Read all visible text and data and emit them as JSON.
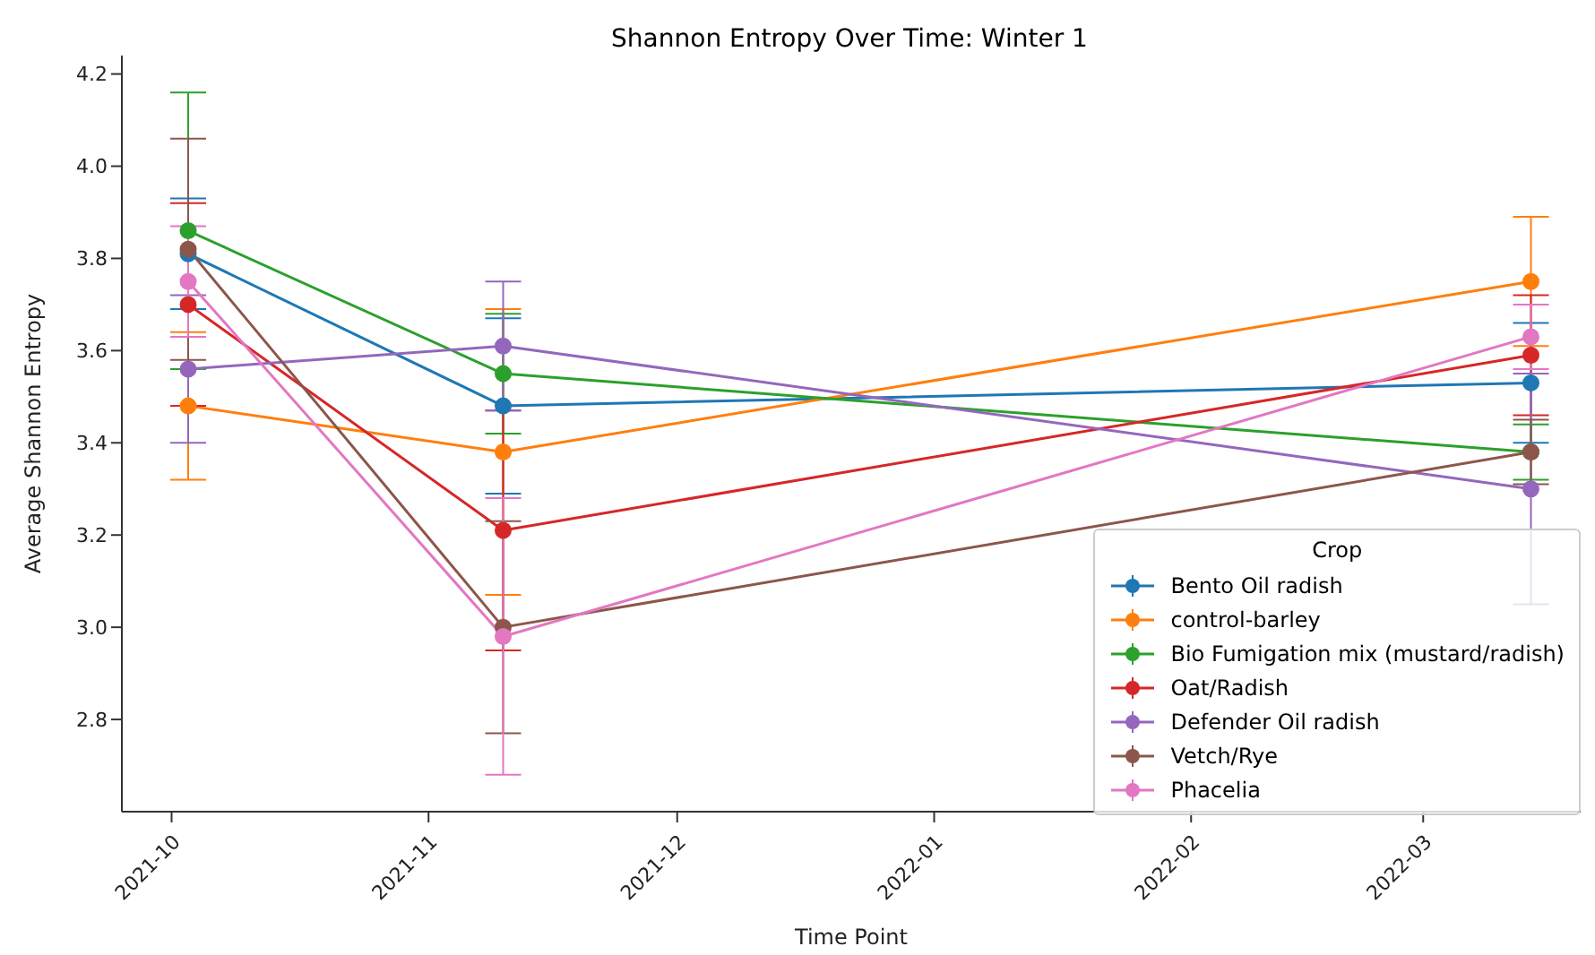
{
  "chart_data": {
    "type": "line",
    "title": "Shannon Entropy Over Time: Winter 1",
    "xlabel": "Time Point",
    "ylabel": "Average Shannon Entropy",
    "legend_title": "Crop",
    "x": [
      "2021-10-03",
      "2021-11-10",
      "2022-03-14"
    ],
    "series": [
      {
        "name": "Bento Oil radish",
        "color": "#1f77b4",
        "values": [
          3.81,
          3.48,
          3.53
        ],
        "errors": [
          0.12,
          0.19,
          0.13
        ]
      },
      {
        "name": "control-barley",
        "color": "#ff7f0e",
        "values": [
          3.48,
          3.38,
          3.75
        ],
        "errors": [
          0.16,
          0.31,
          0.14
        ]
      },
      {
        "name": "Bio Fumigation mix (mustard/radish)",
        "color": "#2ca02c",
        "values": [
          3.86,
          3.55,
          3.38
        ],
        "errors": [
          0.3,
          0.13,
          0.06
        ]
      },
      {
        "name": "Oat/Radish",
        "color": "#d62728",
        "values": [
          3.7,
          3.21,
          3.59
        ],
        "errors": [
          0.22,
          0.26,
          0.13
        ]
      },
      {
        "name": "Defender Oil radish",
        "color": "#9467bd",
        "values": [
          3.56,
          3.61,
          3.3
        ],
        "errors": [
          0.16,
          0.14,
          0.25
        ]
      },
      {
        "name": "Vetch/Rye",
        "color": "#8c564b",
        "values": [
          3.82,
          3.0,
          3.38
        ],
        "errors": [
          0.24,
          0.23,
          0.07
        ]
      },
      {
        "name": "Phacelia",
        "color": "#e377c2",
        "values": [
          3.75,
          2.98,
          3.63
        ],
        "errors": [
          0.12,
          0.3,
          0.07
        ]
      }
    ],
    "xlim": [
      "2021-09-25",
      "2022-03-20"
    ],
    "xticks": [
      "2021-10",
      "2021-11",
      "2021-12",
      "2022-01",
      "2022-02",
      "2022-03"
    ],
    "ylim": [
      2.6,
      4.24
    ],
    "yticks": [
      2.8,
      {
        "value": 3,
        "label": "3.0"
      },
      3.2,
      3.4,
      3.6,
      3.8,
      {
        "value": 4,
        "label": "4.0"
      },
      4.2
    ],
    "grid": false,
    "legend": "bottom right",
    "marker": "circle",
    "line_style": "solid"
  }
}
